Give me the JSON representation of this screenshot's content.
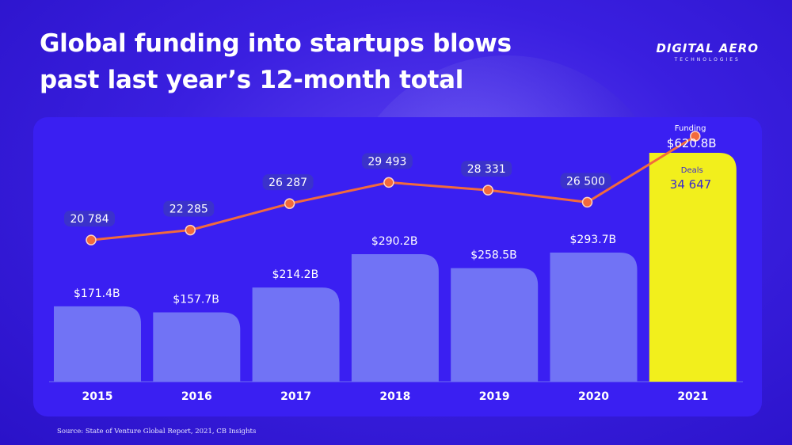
{
  "title_line1": "Global funding into startups blows",
  "title_line2": "past last year’s 12-month total",
  "logo": {
    "main": "DIGITAL AERO",
    "sub": "TECHNOLOGIES"
  },
  "source": "Source: State of Venture Global Report, 2021, CB Insights",
  "colors": {
    "bar": "#7173f5",
    "bar_highlight": "#f2ef1c",
    "line": "#f26a3c",
    "panel": "#3a1ff2",
    "label_pill": "#3c36c4"
  },
  "chart_data": {
    "type": "bar",
    "categories": [
      "2015",
      "2016",
      "2017",
      "2018",
      "2019",
      "2020",
      "2021"
    ],
    "series": [
      {
        "name": "Funding",
        "values": [
          171.4,
          157.7,
          214.2,
          290.2,
          258.5,
          293.7,
          620.8
        ],
        "labels": [
          "$171.4B",
          "$157.7B",
          "$214.2B",
          "$290.2B",
          "$258.5B",
          "$293.7B",
          "$620.8B"
        ]
      },
      {
        "name": "Deals",
        "type": "line",
        "values": [
          20784,
          22285,
          26287,
          29493,
          28331,
          26500,
          34647
        ],
        "labels": [
          "20 784",
          "22 285",
          "26 287",
          "29 493",
          "28 331",
          "26 500",
          "34 647"
        ]
      }
    ],
    "highlight_index": 6,
    "highlight_funding_caption": "Funding",
    "highlight_deals_caption": "Deals"
  }
}
